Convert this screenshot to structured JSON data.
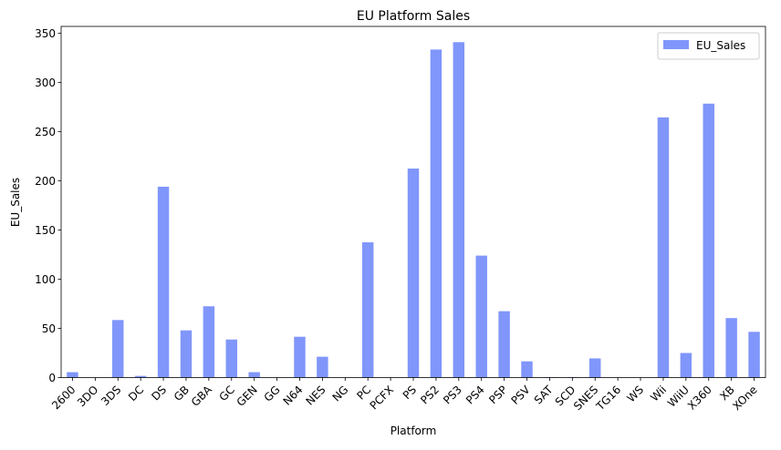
{
  "chart_data": {
    "type": "bar",
    "title": "EU Platform Sales",
    "xlabel": "Platform",
    "ylabel": "EU_Sales",
    "ylim": [
      0,
      357
    ],
    "yticks": [
      0,
      50,
      100,
      150,
      200,
      250,
      300,
      350
    ],
    "grid": false,
    "legend_position": "top-right",
    "bar_color": "#8096fa",
    "categories": [
      "2600",
      "3DO",
      "3DS",
      "DC",
      "DS",
      "GB",
      "GBA",
      "GC",
      "GEN",
      "GG",
      "N64",
      "NES",
      "NG",
      "PC",
      "PCFX",
      "PS",
      "PS2",
      "PS3",
      "PS4",
      "PSP",
      "PSV",
      "SAT",
      "SCD",
      "SNES",
      "TG16",
      "WS",
      "Wii",
      "WiiU",
      "X360",
      "XB",
      "XOne"
    ],
    "series": [
      {
        "name": "EU_Sales",
        "values": [
          5.5,
          0,
          58.5,
          1.7,
          194,
          48,
          72.5,
          38.7,
          5.5,
          0,
          41.5,
          21.2,
          0,
          137.5,
          0,
          212.5,
          333.5,
          341,
          124,
          67.5,
          16.5,
          0.5,
          0.5,
          19.5,
          0,
          0,
          264.5,
          25,
          278.5,
          60.5,
          46.5
        ]
      }
    ]
  }
}
